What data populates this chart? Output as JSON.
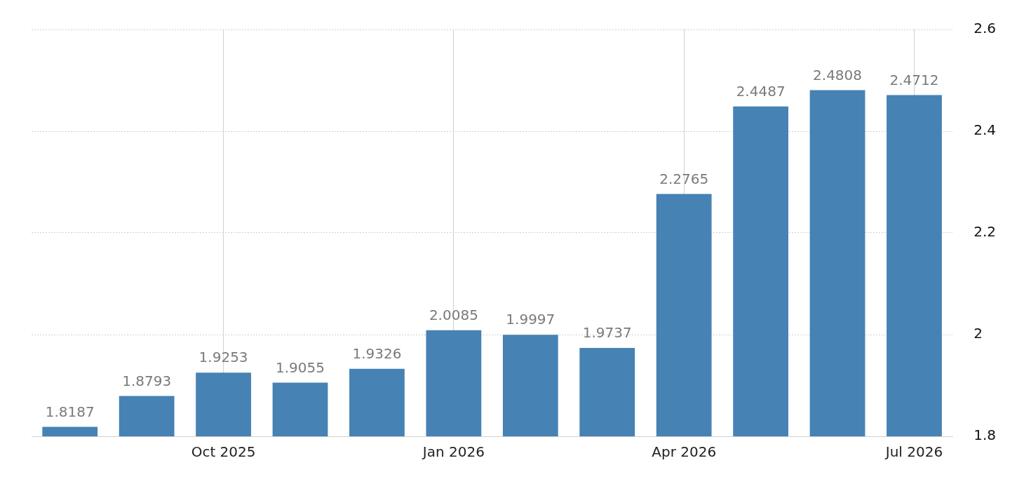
{
  "chart_data": {
    "type": "bar",
    "categories": [
      null,
      null,
      "Oct 2025",
      null,
      null,
      "Jan 2026",
      null,
      null,
      "Apr 2026",
      null,
      null,
      "Jul 2026"
    ],
    "values": [
      1.8187,
      1.8793,
      1.9253,
      1.9055,
      1.9326,
      2.0085,
      1.9997,
      1.9737,
      2.2765,
      2.4487,
      2.4808,
      2.4712
    ],
    "color": "#4682b4",
    "ylim": [
      1.8,
      2.6
    ],
    "yticks": [
      1.8,
      2,
      2.2,
      2.4,
      2.6
    ],
    "grid": true,
    "data_labels": true,
    "legend": false
  }
}
